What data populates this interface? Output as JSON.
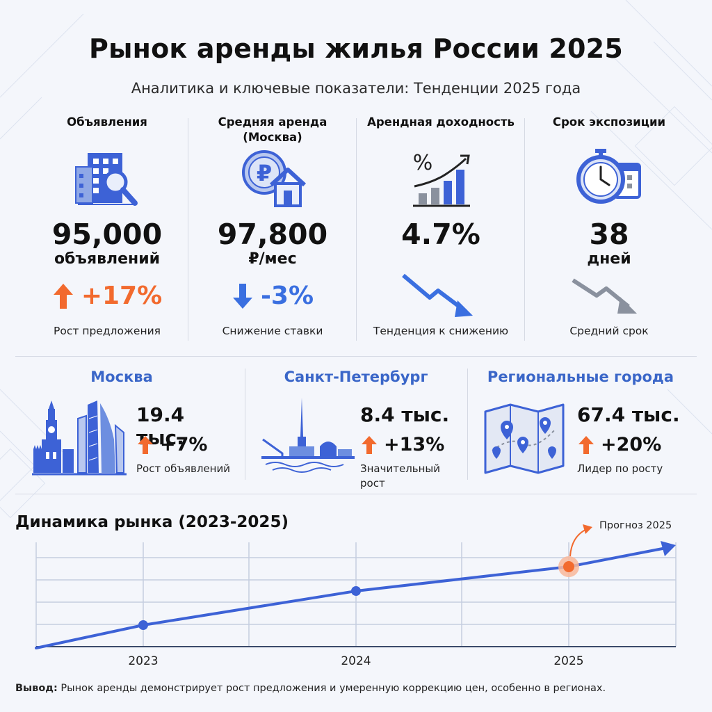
{
  "header": {
    "title": "Рынок аренды жилья России 2025",
    "subtitle": "Аналитика и ключевые показатели: Тенденции 2025 года"
  },
  "kpis": [
    {
      "title": "Объявления",
      "icon": "building-search-icon",
      "value": "95,000",
      "unit": "объявлений",
      "change": "+17%",
      "direction": "up",
      "note": "Рост предложения"
    },
    {
      "title": "Средняя аренда (Москва)",
      "icon": "ruble-house-icon",
      "value": "97,800",
      "unit": "₽/мес",
      "change": "-3%",
      "direction": "down",
      "note": "Снижение ставки"
    },
    {
      "title": "Арендная доходность",
      "icon": "percent-growth-chart-icon",
      "value": "4.7%",
      "unit": "",
      "change": "",
      "direction": "down-trend",
      "note": "Тенденция к снижению"
    },
    {
      "title": "Срок экспозиции",
      "icon": "stopwatch-calendar-icon",
      "value": "38",
      "unit": "дней",
      "change": "",
      "direction": "down-trend",
      "note": "Средний срок"
    }
  ],
  "cities": [
    {
      "name": "Москва",
      "icon": "moscow-skyline-icon",
      "value": "19.4 тыс.",
      "change": "+7%",
      "note": "Рост объявлений"
    },
    {
      "name": "Санкт-Петербург",
      "icon": "spb-skyline-icon",
      "value": "8.4 тыс.",
      "change": "+13%",
      "note": "Значительный рост"
    },
    {
      "name": "Региональные города",
      "icon": "map-pins-icon",
      "value": "67.4 тыс.",
      "change": "+20%",
      "note": "Лидер по росту"
    }
  ],
  "dynamics": {
    "title": "Динамика рынка (2023-2025)",
    "forecast_label": "Прогноз 2025",
    "years": [
      "2023",
      "2024",
      "2025"
    ]
  },
  "conclusion": {
    "label": "Вывод:",
    "text": "Рынок аренды демонстрирует рост предложения и умеренную коррекцию цен, особенно в регионах."
  },
  "colors": {
    "accent": "#3a66c8",
    "up": "#f26a2e",
    "down": "#3a6fe0",
    "neutral": "#8a919e",
    "line": "#3d62d6"
  }
}
